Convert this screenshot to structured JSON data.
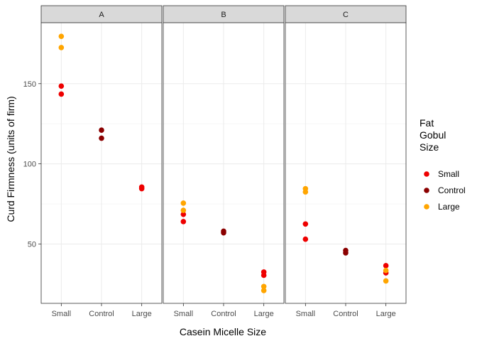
{
  "chart_data": {
    "type": "scatter",
    "facets": [
      "A",
      "B",
      "C"
    ],
    "categories": [
      "Small",
      "Control",
      "Large"
    ],
    "xlabel": "Casein Micelle Size",
    "ylabel": "Curd Firmness (units of firm)",
    "ylim": [
      13,
      188
    ],
    "yticks": [
      50,
      100,
      150
    ],
    "grid": true,
    "legend": {
      "title": [
        "Fat",
        "Gobul",
        "Size"
      ],
      "position": "right",
      "entries": [
        {
          "name": "Small",
          "color": "#ee0000"
        },
        {
          "name": "Control",
          "color": "#8b0000"
        },
        {
          "name": "Large",
          "color": "#ffa500"
        }
      ]
    },
    "points": [
      {
        "facet": "A",
        "x": "Small",
        "group": "Small",
        "y": 148.5
      },
      {
        "facet": "A",
        "x": "Small",
        "group": "Small",
        "y": 143.5
      },
      {
        "facet": "A",
        "x": "Small",
        "group": "Large",
        "y": 179.5
      },
      {
        "facet": "A",
        "x": "Small",
        "group": "Large",
        "y": 172.5
      },
      {
        "facet": "A",
        "x": "Control",
        "group": "Control",
        "y": 121
      },
      {
        "facet": "A",
        "x": "Control",
        "group": "Control",
        "y": 116
      },
      {
        "facet": "A",
        "x": "Large",
        "group": "Small",
        "y": 85.5
      },
      {
        "facet": "A",
        "x": "Large",
        "group": "Small",
        "y": 84.5
      },
      {
        "facet": "B",
        "x": "Small",
        "group": "Small",
        "y": 68.5
      },
      {
        "facet": "B",
        "x": "Small",
        "group": "Small",
        "y": 64
      },
      {
        "facet": "B",
        "x": "Small",
        "group": "Large",
        "y": 75.5
      },
      {
        "facet": "B",
        "x": "Small",
        "group": "Large",
        "y": 71
      },
      {
        "facet": "B",
        "x": "Control",
        "group": "Control",
        "y": 58
      },
      {
        "facet": "B",
        "x": "Control",
        "group": "Control",
        "y": 57
      },
      {
        "facet": "B",
        "x": "Large",
        "group": "Small",
        "y": 32.5
      },
      {
        "facet": "B",
        "x": "Large",
        "group": "Small",
        "y": 30.5
      },
      {
        "facet": "B",
        "x": "Large",
        "group": "Large",
        "y": 23.5
      },
      {
        "facet": "B",
        "x": "Large",
        "group": "Large",
        "y": 21
      },
      {
        "facet": "C",
        "x": "Small",
        "group": "Small",
        "y": 62.5
      },
      {
        "facet": "C",
        "x": "Small",
        "group": "Small",
        "y": 53
      },
      {
        "facet": "C",
        "x": "Small",
        "group": "Large",
        "y": 84.5
      },
      {
        "facet": "C",
        "x": "Small",
        "group": "Large",
        "y": 82.5
      },
      {
        "facet": "C",
        "x": "Control",
        "group": "Control",
        "y": 46
      },
      {
        "facet": "C",
        "x": "Control",
        "group": "Control",
        "y": 44.5
      },
      {
        "facet": "C",
        "x": "Large",
        "group": "Small",
        "y": 36.5
      },
      {
        "facet": "C",
        "x": "Large",
        "group": "Small",
        "y": 32
      },
      {
        "facet": "C",
        "x": "Large",
        "group": "Large",
        "y": 33.5
      },
      {
        "facet": "C",
        "x": "Large",
        "group": "Large",
        "y": 27
      }
    ]
  }
}
